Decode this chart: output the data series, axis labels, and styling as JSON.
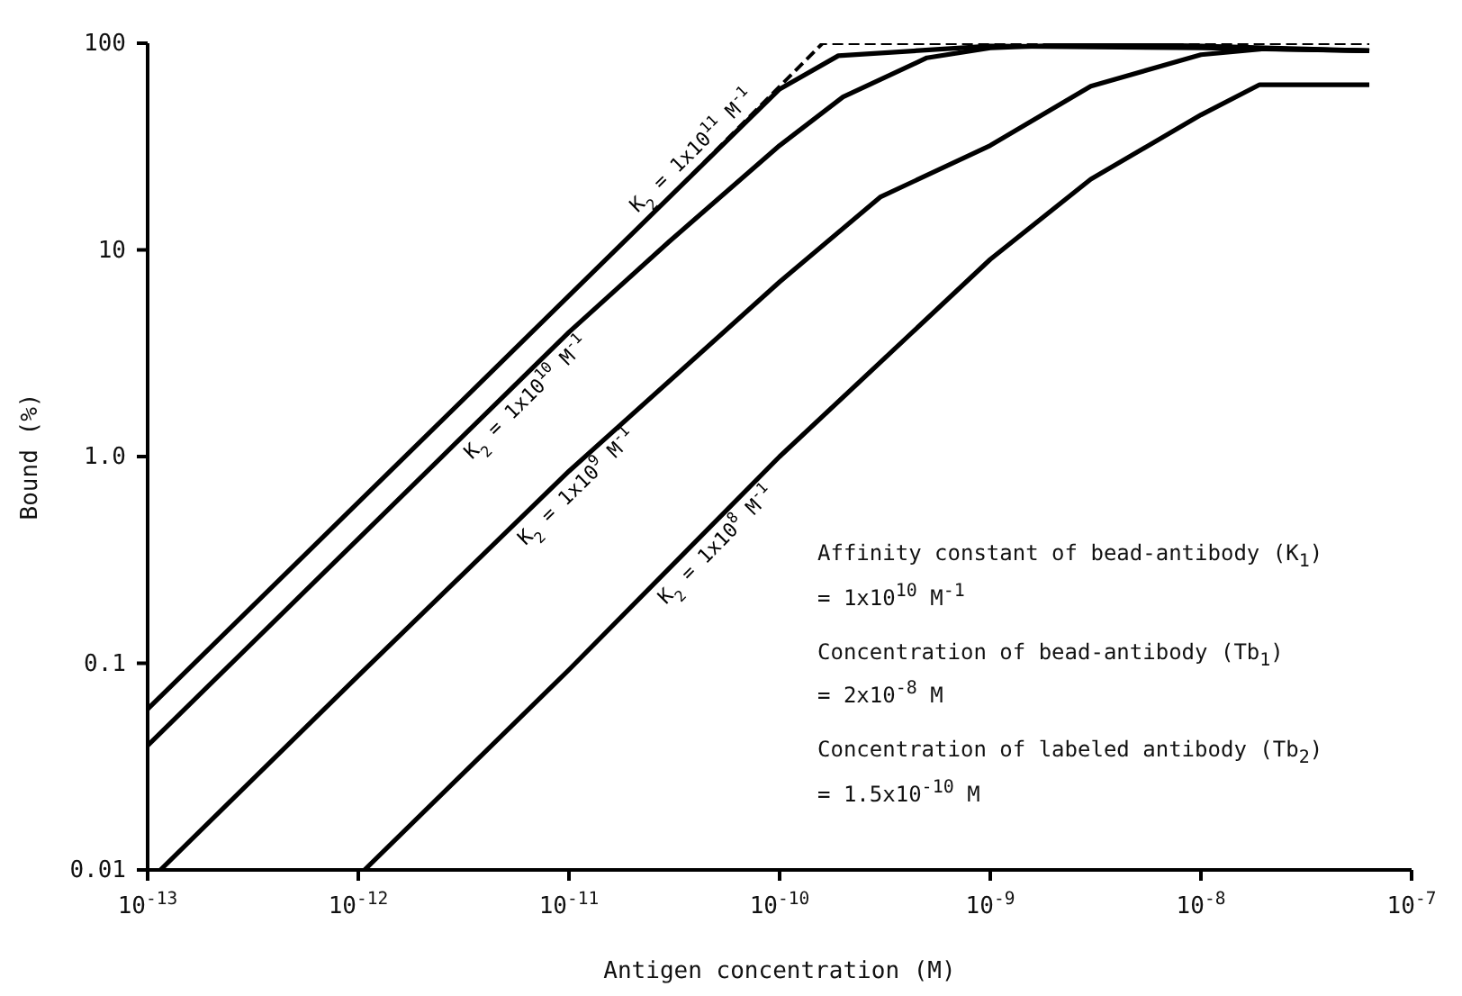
{
  "chart_data": {
    "type": "line",
    "xlabel": "Antigen concentration   (M)",
    "ylabel": "Bound   (%)",
    "log": "xy",
    "grid": false,
    "legend": false,
    "marker": "none",
    "xlim": [
      1e-13,
      1e-07
    ],
    "ylim": [
      0.01,
      100
    ],
    "xticks": [
      {
        "value": 1e-13,
        "label": "10$^{-13}$"
      },
      {
        "value": 1e-12,
        "label": "10$^{-12}$"
      },
      {
        "value": 1e-11,
        "label": "10$^{-11}$"
      },
      {
        "value": 1e-10,
        "label": "10$^{-10}$"
      },
      {
        "value": 1e-09,
        "label": "10$^{-9}$"
      },
      {
        "value": 1e-08,
        "label": "10$^{-8}$"
      },
      {
        "value": 1e-07,
        "label": "10$^{-7}$"
      }
    ],
    "yticks": [
      0.01,
      0.1,
      {
        "value": 1,
        "label": "1.0"
      },
      10,
      100
    ],
    "series": [
      {
        "name": "K$_{2}$ = 1x10$^{11}$ M$^{-1}$",
        "color": "#000000",
        "line_style": "solid",
        "x": [
          1e-13,
          1e-12,
          1e-11,
          1e-10,
          1.9e-10,
          1e-09,
          1e-08,
          6.3e-08
        ],
        "values": [
          0.06,
          0.6,
          6,
          60,
          87,
          97,
          95,
          92
        ]
      },
      {
        "name": "K$_{2}$ = 1x10$^{10}$ M$^{-1}$",
        "color": "#000000",
        "line_style": "solid",
        "x": [
          1e-13,
          1e-12,
          1e-11,
          3e-11,
          1e-10,
          2e-10,
          5e-10,
          1e-09,
          3e-09,
          1e-08,
          6.3e-08
        ],
        "values": [
          0.04,
          0.4,
          4,
          11,
          32,
          55,
          85,
          95,
          99,
          97,
          92
        ]
      },
      {
        "name": "K$_{2}$ = 1x10$^{9}$ M$^{-1}$",
        "color": "#000000",
        "line_style": "solid",
        "x": [
          1.15e-13,
          1e-12,
          1e-11,
          1e-10,
          3e-10,
          1e-09,
          3e-09,
          1e-08,
          2e-08,
          6.3e-08
        ],
        "values": [
          0.01,
          0.087,
          0.85,
          7,
          18,
          32,
          62,
          88,
          94,
          92
        ]
      },
      {
        "name": "K$_{2}$ = 1x10$^{8}$ M$^{-1}$",
        "color": "#000000",
        "line_style": "solid",
        "x": [
          1.07e-12,
          1e-11,
          1e-10,
          1e-09,
          3e-09,
          1e-08,
          1.9e-08,
          6.3e-08
        ],
        "values": [
          0.01,
          0.093,
          1,
          9,
          22,
          45,
          63,
          63
        ]
      },
      {
        "color": "#000000",
        "line_style": "dashed",
        "x": [
          3e-11,
          1.6e-10,
          6.3e-08
        ],
        "values": [
          18,
          100,
          100
        ]
      }
    ],
    "annotations": [
      "Affinity constant of bead-antibody (K$_{1}$)",
      "= 1x10$^{10}$ M$^{-1}$",
      "Concentration of bead-antibody (Tb$_{1}$)",
      "= 2x10$^{-8}$ M",
      "Concentration of labeled antibody (Tb$_{2}$)",
      "= 1.5x10$^{-10}$ M"
    ]
  }
}
